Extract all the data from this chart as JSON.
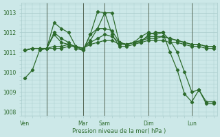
{
  "background_color": "#cce8e8",
  "grid_color": "#aacccc",
  "line_color": "#2d6b2d",
  "text_color": "#2d6b2d",
  "xlabel": "Pression niveau de la mer( hPa )",
  "ylim": [
    1007.8,
    1013.5
  ],
  "yticks": [
    1008,
    1009,
    1010,
    1011,
    1012,
    1013
  ],
  "day_labels": [
    "Ven",
    "Mar",
    "Sam",
    "Dim",
    "Lun"
  ],
  "day_positions": [
    0,
    8,
    11,
    17,
    23
  ],
  "vline_positions": [
    3,
    8,
    11,
    17,
    23
  ],
  "num_points": 27,
  "series": [
    [
      1009.7,
      1010.1,
      1011.1,
      1011.2,
      1012.5,
      1012.2,
      1012.0,
      1011.3,
      1011.1,
      1011.9,
      1012.2,
      1013.0,
      1013.0,
      1011.5,
      1011.4,
      1011.5,
      1011.8,
      1012.0,
      1011.9,
      1012.0,
      1011.6,
      1011.0,
      1010.0,
      1009.0,
      1009.1,
      1008.5,
      1008.5
    ],
    [
      1011.1,
      1011.2,
      1011.2,
      1011.2,
      1011.3,
      1011.3,
      1011.4,
      1011.3,
      1011.2,
      1011.5,
      1011.7,
      1011.9,
      1011.8,
      1011.5,
      1011.4,
      1011.5,
      1011.6,
      1011.7,
      1011.7,
      1011.8,
      1011.7,
      1011.6,
      1011.5,
      1011.4,
      1011.4,
      1011.3,
      1011.3
    ],
    [
      1011.1,
      1011.2,
      1011.2,
      1011.2,
      1011.2,
      1011.2,
      1011.3,
      1011.3,
      1011.2,
      1011.4,
      1011.5,
      1011.6,
      1011.6,
      1011.4,
      1011.4,
      1011.5,
      1011.5,
      1011.6,
      1011.6,
      1011.6,
      1011.5,
      1011.5,
      1011.4,
      1011.3,
      1011.3,
      1011.2,
      1011.2
    ],
    [
      1011.1,
      1011.2,
      1011.2,
      1011.2,
      1011.9,
      1011.5,
      1011.4,
      1011.3,
      1011.2,
      1011.6,
      1012.2,
      1012.2,
      1012.1,
      1011.5,
      1011.4,
      1011.5,
      1011.6,
      1011.8,
      1011.8,
      1011.8,
      1011.7,
      1011.6,
      1011.5,
      1011.4,
      1011.4,
      1011.3,
      1011.3
    ],
    [
      1011.1,
      1011.2,
      1011.2,
      1011.2,
      1012.0,
      1011.7,
      1011.5,
      1011.2,
      1011.1,
      1011.9,
      1013.05,
      1013.0,
      1011.9,
      1011.3,
      1011.3,
      1011.4,
      1011.5,
      1011.9,
      1012.0,
      1012.0,
      1011.0,
      1010.1,
      1008.9,
      1008.5,
      1009.1,
      1008.4,
      1008.4
    ]
  ]
}
